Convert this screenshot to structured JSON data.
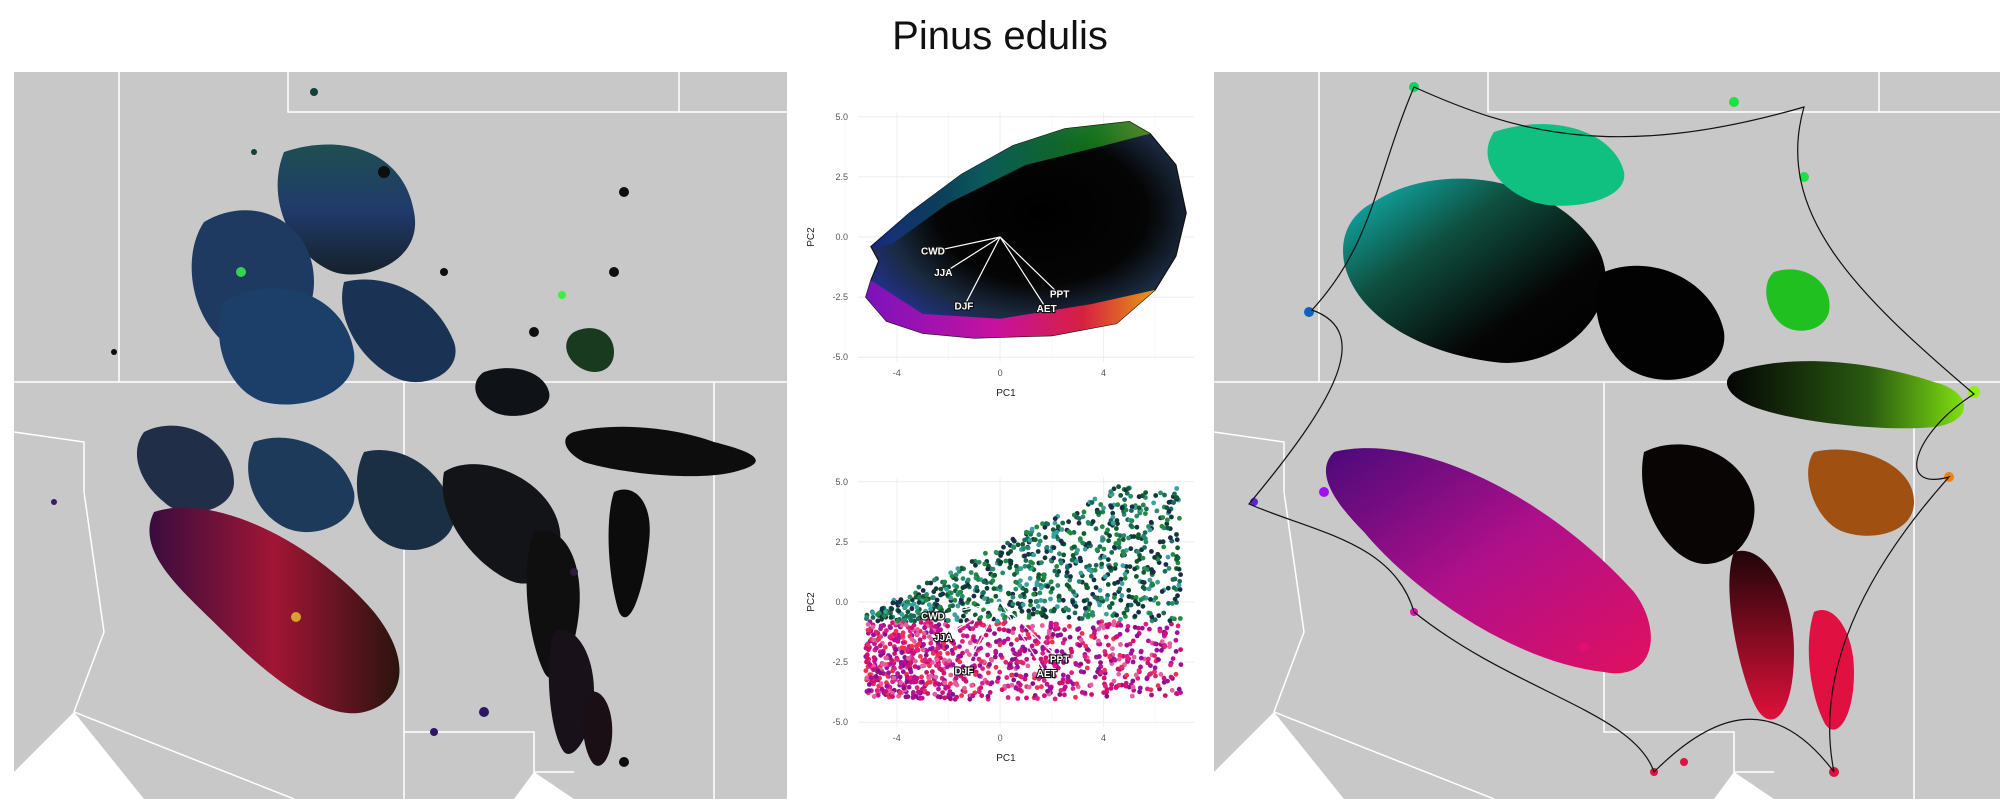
{
  "title": "Pinus edulis",
  "colors": {
    "map_bg": "#c8c8c8",
    "border": "#ffffff",
    "land_white": "#ffffff"
  },
  "chart_data": [
    {
      "type": "scatter",
      "panel": "top",
      "xlabel": "PC1",
      "ylabel": "PC2",
      "xlim": [
        -5.5,
        7.5
      ],
      "ylim": [
        -5.2,
        5.2
      ],
      "xticks": [
        "-4",
        "0",
        "4"
      ],
      "xtick_values": [
        -4,
        0,
        4
      ],
      "yticks": [
        "5.0",
        "2.5",
        "0.0",
        "-2.5",
        "-5.0"
      ],
      "ytick_values": [
        5.0,
        2.5,
        0.0,
        -2.5,
        -5.0
      ],
      "grid": true,
      "vector_labels": [
        "CWD",
        "JJA",
        "DJF",
        "PPT",
        "AET"
      ],
      "vectors": [
        {
          "label": "CWD",
          "x": -2.6,
          "y": -0.6
        },
        {
          "label": "JJA",
          "x": -2.2,
          "y": -1.5
        },
        {
          "label": "DJF",
          "x": -1.4,
          "y": -2.9
        },
        {
          "label": "PPT",
          "x": 2.3,
          "y": -2.4
        },
        {
          "label": "AET",
          "x": 1.8,
          "y": -3.0
        }
      ]
    },
    {
      "type": "scatter",
      "panel": "bottom",
      "xlabel": "PC1",
      "ylabel": "PC2",
      "xlim": [
        -5.5,
        7.5
      ],
      "ylim": [
        -5.2,
        5.2
      ],
      "xticks": [
        "-4",
        "0",
        "4"
      ],
      "xtick_values": [
        -4,
        0,
        4
      ],
      "yticks": [
        "5.0",
        "2.5",
        "0.0",
        "-2.5",
        "-5.0"
      ],
      "ytick_values": [
        5.0,
        2.5,
        0.0,
        -2.5,
        -5.0
      ],
      "grid": true,
      "vector_labels": [
        "CWD",
        "JJA",
        "DJF",
        "PPT",
        "AET"
      ],
      "vectors": [
        {
          "label": "CWD",
          "x": -2.6,
          "y": -0.6
        },
        {
          "label": "JJA",
          "x": -2.2,
          "y": -1.5
        },
        {
          "label": "DJF",
          "x": -1.4,
          "y": -2.9
        },
        {
          "label": "PPT",
          "x": 2.3,
          "y": -2.4
        },
        {
          "label": "AET",
          "x": 1.8,
          "y": -3.0
        }
      ]
    }
  ]
}
